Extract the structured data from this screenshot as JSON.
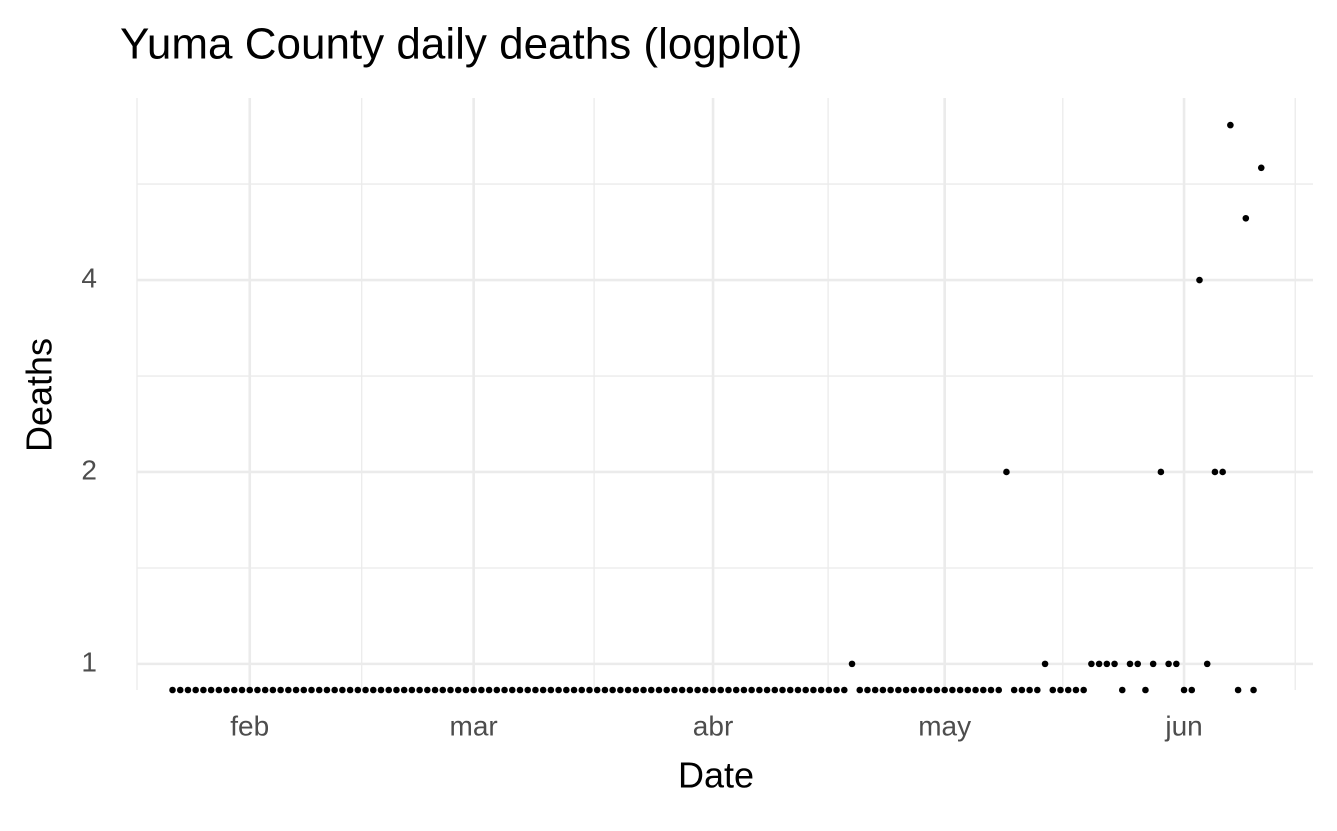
{
  "chart_data": {
    "type": "scatter",
    "title": "Yuma County daily deaths (logplot)",
    "x_label": "Date",
    "y_label": "Deaths",
    "x": [
      22,
      23,
      24,
      25,
      26,
      27,
      28,
      29,
      30,
      31,
      32,
      33,
      34,
      35,
      36,
      37,
      38,
      39,
      40,
      41,
      42,
      43,
      44,
      45,
      46,
      47,
      48,
      49,
      50,
      51,
      52,
      53,
      54,
      55,
      56,
      57,
      58,
      59,
      60,
      61,
      62,
      63,
      64,
      65,
      66,
      67,
      68,
      69,
      70,
      71,
      72,
      73,
      74,
      75,
      76,
      77,
      78,
      79,
      80,
      81,
      82,
      83,
      84,
      85,
      86,
      87,
      88,
      89,
      90,
      91,
      92,
      93,
      94,
      95,
      96,
      97,
      98,
      99,
      100,
      101,
      102,
      103,
      104,
      105,
      106,
      107,
      108,
      109,
      110,
      111,
      112,
      113,
      114,
      115,
      116,
      117,
      118,
      119,
      120,
      121,
      122,
      123,
      124,
      125,
      126,
      127,
      128,
      129,
      130,
      131,
      132,
      133,
      134,
      135,
      136,
      137,
      138,
      139,
      140,
      141,
      142,
      143,
      144,
      145,
      146,
      147,
      148,
      149,
      150,
      151,
      152,
      153,
      154,
      155,
      156,
      157,
      158,
      159,
      160,
      161,
      162,
      163
    ],
    "values": [
      0,
      0,
      0,
      0,
      0,
      0,
      0,
      0,
      0,
      0,
      0,
      0,
      0,
      0,
      0,
      0,
      0,
      0,
      0,
      0,
      0,
      0,
      0,
      0,
      0,
      0,
      0,
      0,
      0,
      0,
      0,
      0,
      0,
      0,
      0,
      0,
      0,
      0,
      0,
      0,
      0,
      0,
      0,
      0,
      0,
      0,
      0,
      0,
      0,
      0,
      0,
      0,
      0,
      0,
      0,
      0,
      0,
      0,
      0,
      0,
      0,
      0,
      0,
      0,
      0,
      0,
      0,
      0,
      0,
      0,
      0,
      0,
      0,
      0,
      0,
      0,
      0,
      0,
      0,
      0,
      0,
      0,
      0,
      0,
      0,
      0,
      0,
      0,
      1,
      0,
      0,
      0,
      0,
      0,
      0,
      0,
      0,
      0,
      0,
      0,
      0,
      0,
      0,
      0,
      0,
      0,
      0,
      0,
      2,
      0,
      0,
      0,
      0,
      1,
      0,
      0,
      0,
      0,
      0,
      1,
      1,
      1,
      1,
      0,
      1,
      1,
      0,
      1,
      2,
      1,
      1,
      0,
      0,
      4,
      1,
      2,
      2,
      7,
      0,
      5,
      0,
      6
    ],
    "color": "#000000",
    "xlim": [
      17.4,
      169.7
    ],
    "xticks": [
      {
        "value": 32,
        "label": "feb"
      },
      {
        "value": 61,
        "label": "mar"
      },
      {
        "value": 92,
        "label": "abr"
      },
      {
        "value": 122,
        "label": "may"
      },
      {
        "value": 153,
        "label": "jun"
      }
    ],
    "xminorticks": [
      17.4,
      46.5,
      76.6,
      106.9,
      137.3,
      167.4
    ],
    "ylim": [
      0.91,
      7.72
    ],
    "yticks": [
      1,
      2,
      4
    ],
    "yminorticks": [
      1.414,
      2.828,
      5.657
    ],
    "log_y": true,
    "grid": true
  }
}
